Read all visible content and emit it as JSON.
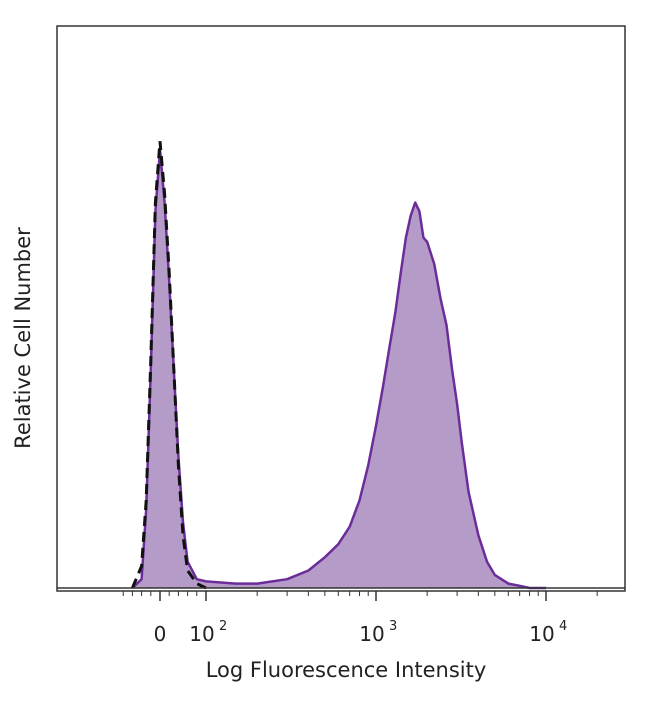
{
  "chart_data": {
    "type": "area",
    "title": "",
    "xlabel": "Log Fluorescence Intensity",
    "ylabel": "Relative Cell Number",
    "x_scale": "biexponential",
    "x_ticks": [
      {
        "value": 0,
        "base": "0",
        "exp": ""
      },
      {
        "value": 100,
        "base": "10",
        "exp": "2"
      },
      {
        "value": 1000,
        "base": "10",
        "exp": "3"
      },
      {
        "value": 10000,
        "base": "10",
        "exp": "4"
      }
    ],
    "grid": false,
    "legend": "none",
    "colors": {
      "stained_fill": "#b59cc8",
      "stained_line": "#6a2d9a",
      "control_line": "#111111",
      "axis": "#333333"
    },
    "series": [
      {
        "style": "filled-solid",
        "x": [
          -60,
          -40,
          -30,
          -20,
          -10,
          0,
          10,
          20,
          30,
          40,
          50,
          60,
          80,
          100,
          150,
          200,
          300,
          400,
          500,
          600,
          700,
          800,
          900,
          1000,
          1100,
          1200,
          1300,
          1400,
          1500,
          1600,
          1700,
          1800,
          1900,
          2000,
          2200,
          2400,
          2600,
          2800,
          3000,
          3200,
          3500,
          4000,
          4500,
          5000,
          6000,
          7000,
          8000,
          10000
        ],
        "y": [
          0.0,
          0.02,
          0.18,
          0.5,
          0.86,
          1.0,
          0.88,
          0.7,
          0.5,
          0.3,
          0.15,
          0.06,
          0.02,
          0.015,
          0.01,
          0.01,
          0.02,
          0.04,
          0.07,
          0.1,
          0.14,
          0.2,
          0.28,
          0.37,
          0.46,
          0.55,
          0.63,
          0.72,
          0.8,
          0.85,
          0.88,
          0.86,
          0.8,
          0.79,
          0.74,
          0.66,
          0.6,
          0.5,
          0.42,
          0.33,
          0.22,
          0.12,
          0.06,
          0.03,
          0.01,
          0.005,
          0.0,
          0.0
        ]
      },
      {
        "style": "dashed",
        "x": [
          -60,
          -40,
          -30,
          -20,
          -10,
          0,
          10,
          20,
          30,
          40,
          50,
          60,
          80,
          100
        ],
        "y": [
          0.0,
          0.05,
          0.2,
          0.52,
          0.88,
          1.02,
          0.9,
          0.72,
          0.5,
          0.28,
          0.12,
          0.04,
          0.01,
          0.0
        ]
      }
    ]
  }
}
